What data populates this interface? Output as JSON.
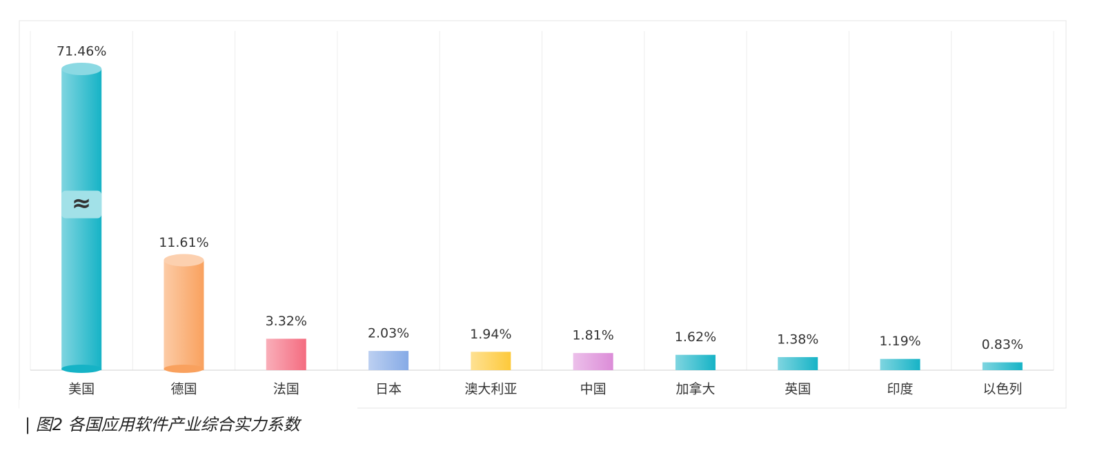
{
  "chart_data": {
    "type": "bar",
    "title": "| 图2 各国应用软件产业综合实力系数",
    "categories": [
      "美国",
      "德国",
      "法国",
      "日本",
      "澳大利亚",
      "中国",
      "加拿大",
      "英国",
      "印度",
      "以色列"
    ],
    "values": [
      71.46,
      11.61,
      3.32,
      2.03,
      1.94,
      1.81,
      1.62,
      1.38,
      1.19,
      0.83
    ],
    "value_labels": [
      "71.46%",
      "11.61%",
      "3.32%",
      "2.03%",
      "1.94%",
      "1.81%",
      "1.62%",
      "1.38%",
      "1.19%",
      "0.83%"
    ],
    "colors": [
      "#16b3c6",
      "#f9a15e",
      "#f46c80",
      "#86aae6",
      "#fdc93a",
      "#dc8cd8",
      "#16b3c6",
      "#16b3c6",
      "#16b3c6",
      "#16b3c6"
    ],
    "axis_break": {
      "category": "美国",
      "label": "≈"
    },
    "grid": true
  }
}
